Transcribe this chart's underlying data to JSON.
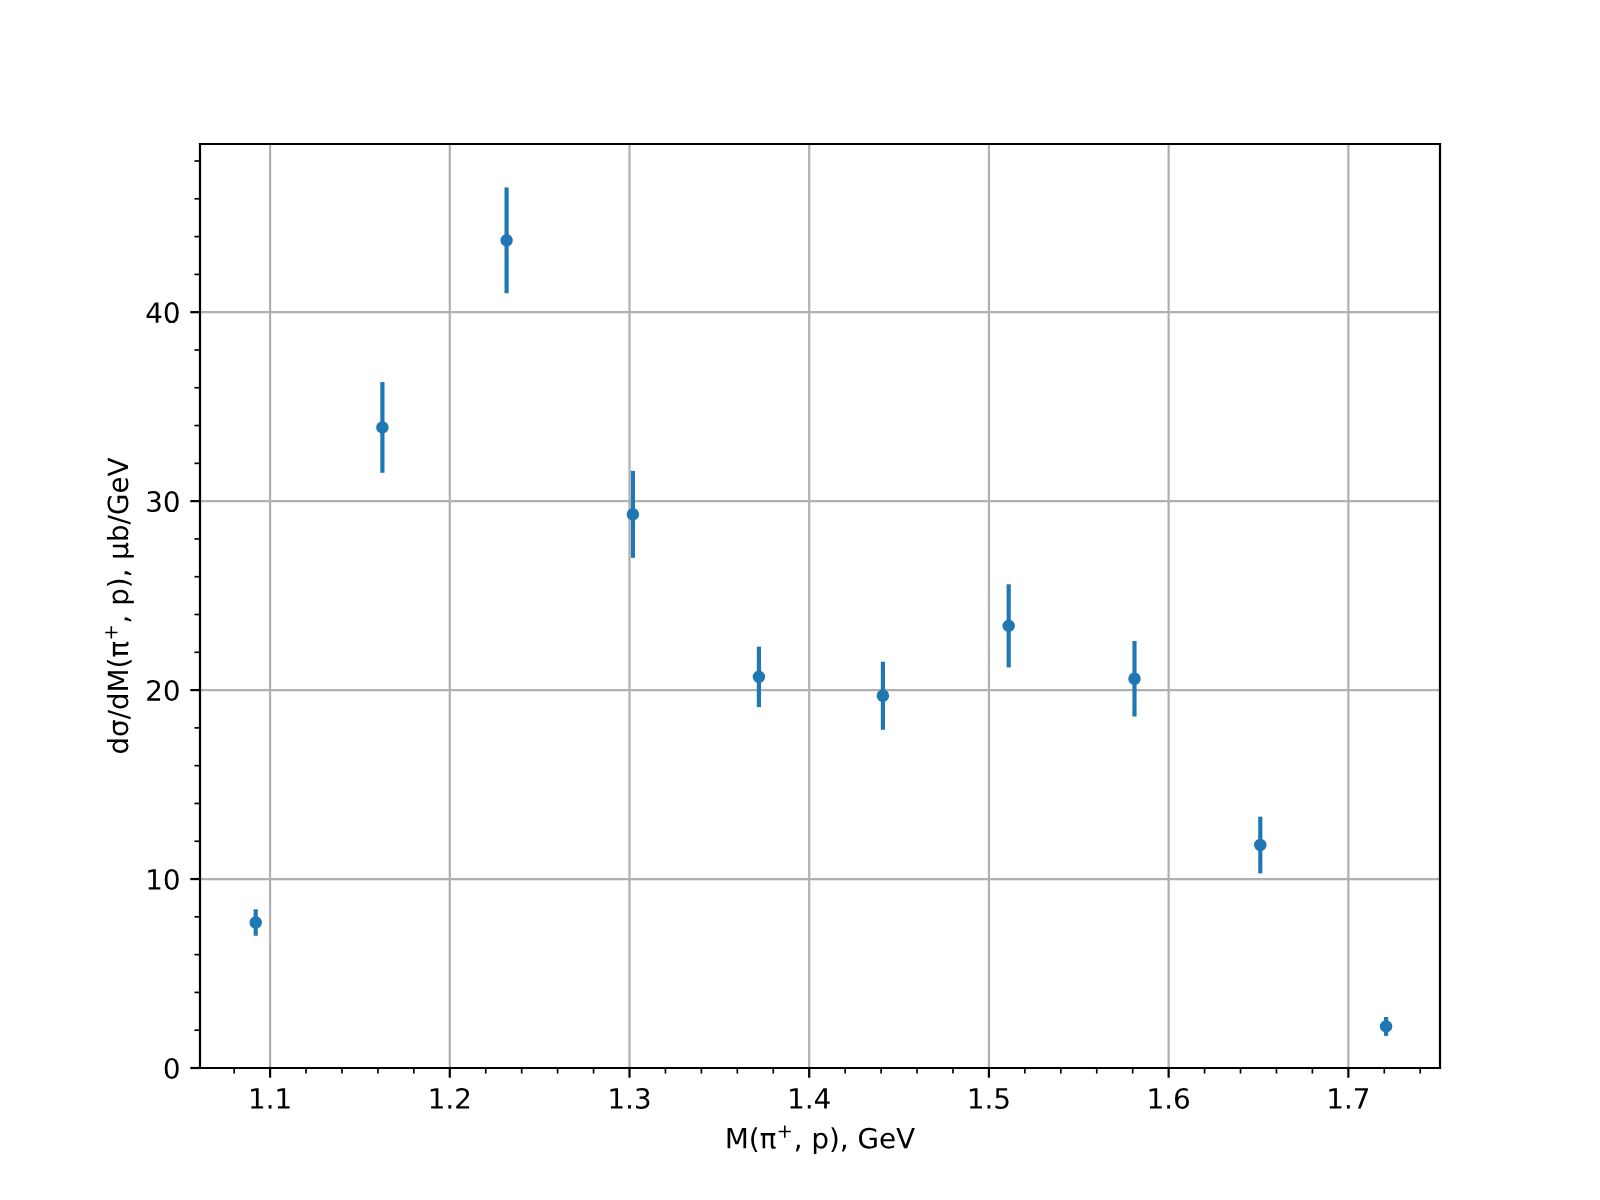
{
  "chart_data": {
    "type": "scatter",
    "xlabel": "M(π$^{+}$, p), GeV",
    "ylabel": "dσ/dM(π$^{+}$, p), μb/GeV",
    "x": [
      1.092,
      1.1625,
      1.2316,
      1.3019,
      1.372,
      1.441,
      1.511,
      1.581,
      1.651,
      1.721
    ],
    "series": [
      {
        "color": "#1f77b4",
        "values": [
          7.7,
          33.9,
          43.8,
          29.3,
          20.7,
          19.7,
          23.4,
          20.6,
          11.8,
          2.2
        ],
        "errors": [
          0.7,
          2.4,
          2.8,
          2.3,
          1.6,
          1.8,
          2.2,
          2.0,
          1.5,
          0.5
        ]
      }
    ],
    "xlim": [
      1.061,
      1.751
    ],
    "ylim": [
      0,
      48.9
    ],
    "xticks": [
      1.1,
      1.2,
      1.3,
      1.4,
      1.5,
      1.6,
      1.7
    ],
    "yticks": [
      0,
      10,
      20,
      30,
      40
    ],
    "grid": true,
    "marker": "circle"
  }
}
